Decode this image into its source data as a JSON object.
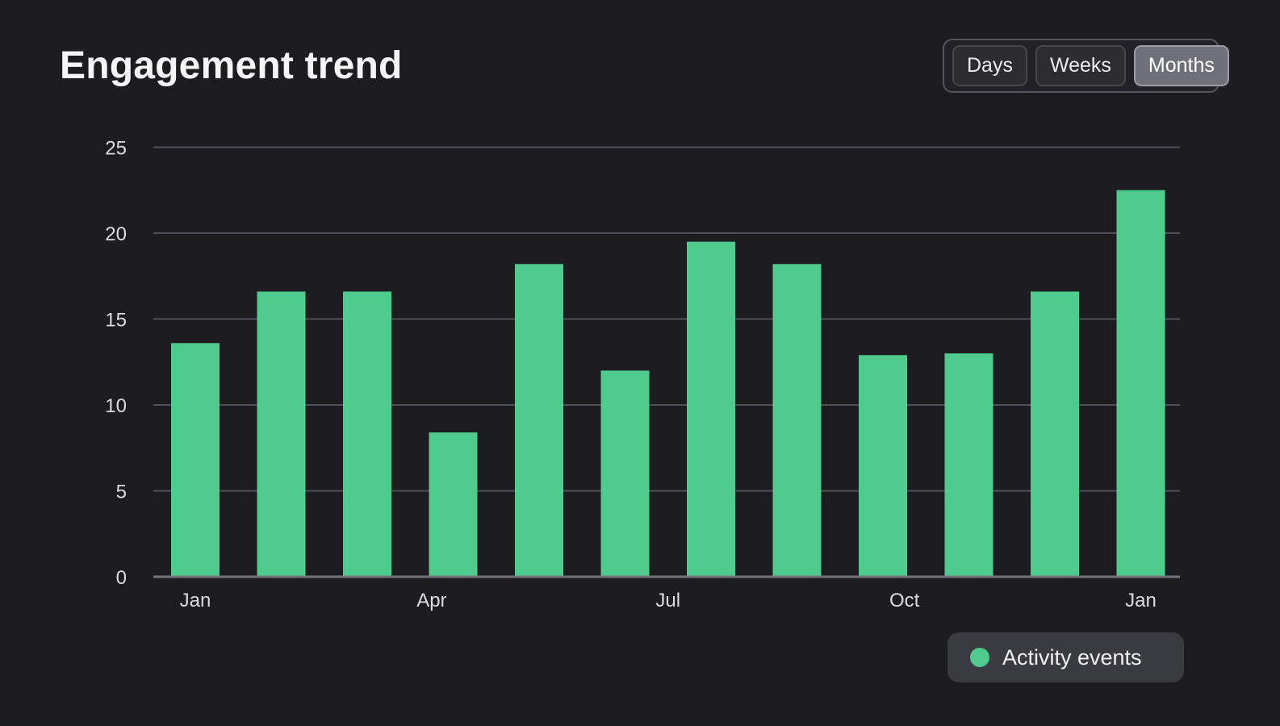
{
  "header": {
    "title": "Engagement trend"
  },
  "time_range_toggle": {
    "options": [
      {
        "label": "Days",
        "active": false
      },
      {
        "label": "Weeks",
        "active": false
      },
      {
        "label": "Months",
        "active": true
      }
    ]
  },
  "legend": {
    "label": "Activity events"
  },
  "chart_data": {
    "type": "bar",
    "title": "Engagement trend",
    "series": [
      {
        "name": "Activity events",
        "color": "#4ecb8d",
        "values": [
          13.6,
          16.6,
          16.6,
          8.4,
          18.2,
          12.0,
          19.5,
          18.2,
          12.9,
          13.0,
          16.6,
          22.5
        ]
      }
    ],
    "x_tick_labels": [
      "Jan",
      "Apr",
      "Jul",
      "Oct",
      "Jan"
    ],
    "y_ticks": [
      0,
      5,
      10,
      15,
      20,
      25
    ],
    "ylim": [
      0,
      25
    ],
    "grid": "horizontal",
    "legend_position": "bottom-right",
    "axis_text_color": "#dcdce0",
    "gridline_color": "#50505a",
    "baseline_color": "#73737a"
  }
}
